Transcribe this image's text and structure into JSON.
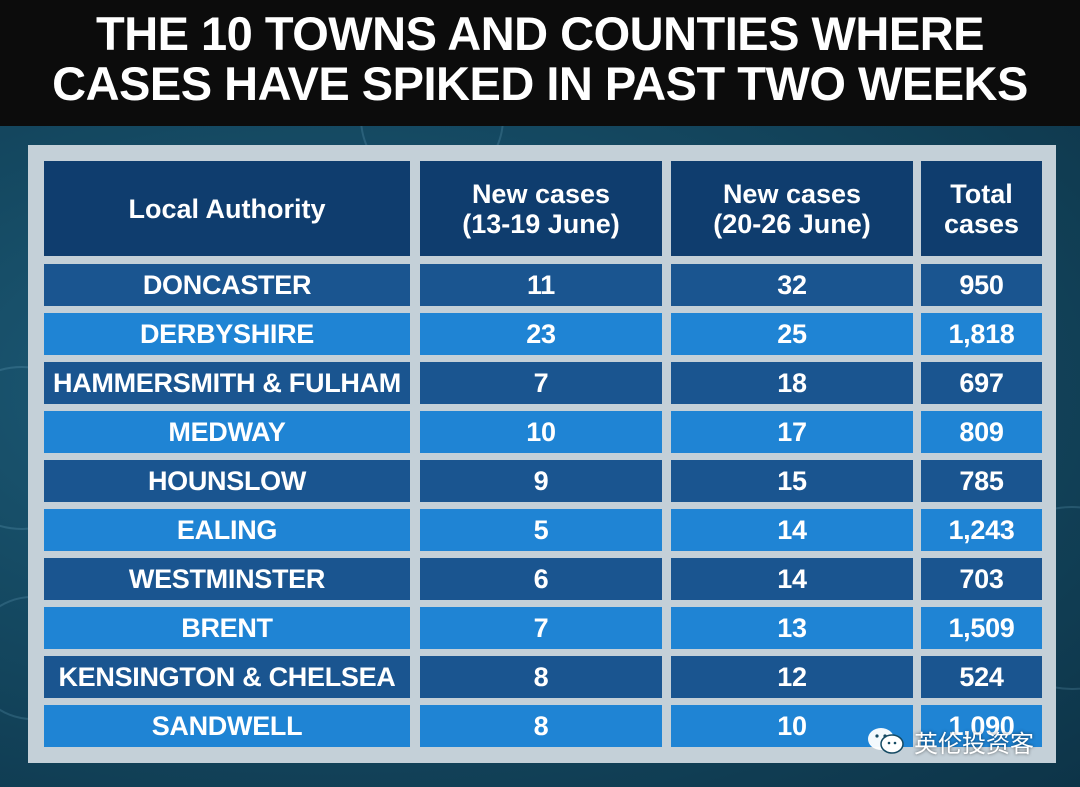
{
  "title_line1": "THE 10 TOWNS AND COUNTIES WHERE",
  "title_line2": "CASES HAVE SPIKED IN PAST TWO WEEKS",
  "watermark": "英伦投资客",
  "colors": {
    "header_cell": "#0f3d6e",
    "row_dark": "#1a5590",
    "row_light": "#1f84d4",
    "frame": "#c4d0d8",
    "background": "#154a63"
  },
  "chart_data": {
    "type": "table",
    "title": "THE 10 TOWNS AND COUNTIES WHERE CASES HAVE SPIKED IN PAST TWO WEEKS",
    "columns": [
      {
        "line1": "Local Authority",
        "line2": ""
      },
      {
        "line1": "New cases",
        "line2": "(13-19 June)"
      },
      {
        "line1": "New cases",
        "line2": "(20-26 June)"
      },
      {
        "line1": "Total",
        "line2": "cases"
      }
    ],
    "rows": [
      [
        "DONCASTER",
        "11",
        "32",
        "950"
      ],
      [
        "DERBYSHIRE",
        "23",
        "25",
        "1,818"
      ],
      [
        "HAMMERSMITH & FULHAM",
        "7",
        "18",
        "697"
      ],
      [
        "MEDWAY",
        "10",
        "17",
        "809"
      ],
      [
        "HOUNSLOW",
        "9",
        "15",
        "785"
      ],
      [
        "EALING",
        "5",
        "14",
        "1,243"
      ],
      [
        "WESTMINSTER",
        "6",
        "14",
        "703"
      ],
      [
        "BRENT",
        "7",
        "13",
        "1,509"
      ],
      [
        "KENSINGTON & CHELSEA",
        "8",
        "12",
        "524"
      ],
      [
        "SANDWELL",
        "8",
        "10",
        "1,090"
      ]
    ]
  }
}
